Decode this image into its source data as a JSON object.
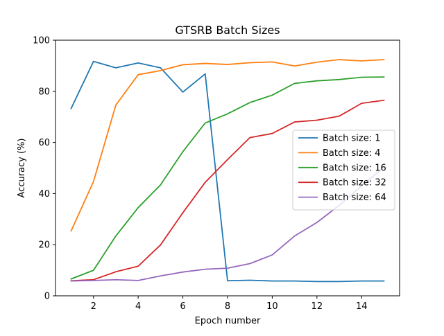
{
  "chart_data": {
    "type": "line",
    "title": "GTSRB Batch Sizes",
    "xlabel": "Epoch number",
    "ylabel": "Accuracy (%)",
    "xlim": [
      0.3,
      15.7
    ],
    "ylim": [
      0,
      100
    ],
    "x_ticks": [
      2,
      4,
      6,
      8,
      10,
      12,
      14
    ],
    "y_ticks": [
      0,
      20,
      40,
      60,
      80,
      100
    ],
    "grid": false,
    "legend_position": "center-right",
    "x": [
      1,
      2,
      3,
      4,
      5,
      6,
      7,
      8,
      9,
      10,
      11,
      12,
      13,
      14,
      15
    ],
    "series": [
      {
        "name": "Batch size: 1",
        "color": "#1f77b4",
        "values": [
          73.3,
          91.7,
          89.2,
          91.1,
          89.2,
          79.7,
          86.8,
          5.9,
          6.1,
          5.8,
          5.8,
          5.6,
          5.6,
          5.8,
          5.8
        ]
      },
      {
        "name": "Batch size: 4",
        "color": "#ff7f0e",
        "values": [
          25.4,
          44.7,
          74.6,
          86.5,
          88.1,
          90.4,
          90.9,
          90.5,
          91.2,
          91.5,
          89.9,
          91.4,
          92.4,
          91.9,
          92.4
        ]
      },
      {
        "name": "Batch size: 16",
        "color": "#2ca02c",
        "values": [
          6.6,
          10.0,
          23.4,
          34.5,
          43.4,
          56.4,
          67.6,
          71.2,
          75.6,
          78.5,
          83.1,
          84.1,
          84.6,
          85.5,
          85.6
        ]
      },
      {
        "name": "Batch size: 32",
        "color": "#d62728",
        "values": [
          5.9,
          6.3,
          9.4,
          11.6,
          19.9,
          32.5,
          44.4,
          53.3,
          61.9,
          63.5,
          68.0,
          68.7,
          70.3,
          75.3,
          76.5
        ]
      },
      {
        "name": "Batch size: 64",
        "color": "#9467bd",
        "values": [
          5.8,
          6.0,
          6.3,
          6.0,
          7.8,
          9.3,
          10.4,
          10.8,
          12.6,
          16.0,
          23.4,
          28.7,
          35.4,
          43.0,
          50.4
        ]
      }
    ]
  }
}
